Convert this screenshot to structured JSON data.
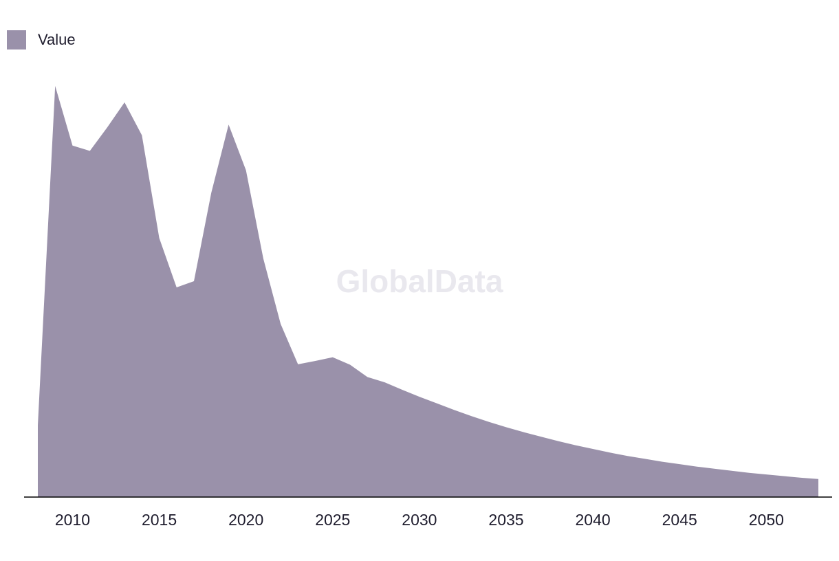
{
  "legend": {
    "label": "Value",
    "color": "#9a91aa"
  },
  "watermark": "GlobalData",
  "colors": {
    "area": "#9a91aa",
    "axis": "#000000",
    "watermark": "#e9e8ee",
    "text": "#1f1d2e"
  },
  "chart_data": {
    "type": "area",
    "series": [
      {
        "name": "Value",
        "x": [
          2008,
          2009,
          2010,
          2011,
          2012,
          2013,
          2014,
          2015,
          2016,
          2017,
          2018,
          2019,
          2020,
          2021,
          2022,
          2023,
          2024,
          2025,
          2026,
          2027,
          2028,
          2029,
          2030,
          2031,
          2032,
          2033,
          2034,
          2035,
          2036,
          2037,
          2038,
          2039,
          2040,
          2041,
          2042,
          2043,
          2044,
          2045,
          2046,
          2047,
          2048,
          2049,
          2050,
          2051,
          2052,
          2053
        ],
        "values": [
          17.5,
          100,
          85.5,
          84.2,
          89.9,
          96,
          88,
          63,
          51,
          52.5,
          74,
          90.6,
          79.5,
          58,
          42.1,
          32.3,
          33.1,
          34,
          32.2,
          29.2,
          27.9,
          26.1,
          24.4,
          22.8,
          21.2,
          19.7,
          18.3,
          17,
          15.8,
          14.7,
          13.6,
          12.6,
          11.7,
          10.8,
          10,
          9.3,
          8.6,
          8,
          7.4,
          6.9,
          6.4,
          5.9,
          5.5,
          5.1,
          4.7,
          4.4
        ]
      }
    ],
    "xticks": [
      "2010",
      "2015",
      "2020",
      "2025",
      "2030",
      "2035",
      "2040",
      "2045",
      "2050"
    ],
    "xtick_values": [
      2010,
      2015,
      2020,
      2025,
      2030,
      2035,
      2040,
      2045,
      2050
    ],
    "xlim": [
      2007.2,
      2054.8
    ],
    "ylim": [
      0,
      100
    ],
    "title": "",
    "xlabel": "",
    "ylabel": "",
    "grid": false,
    "legend_position": "top-left"
  }
}
